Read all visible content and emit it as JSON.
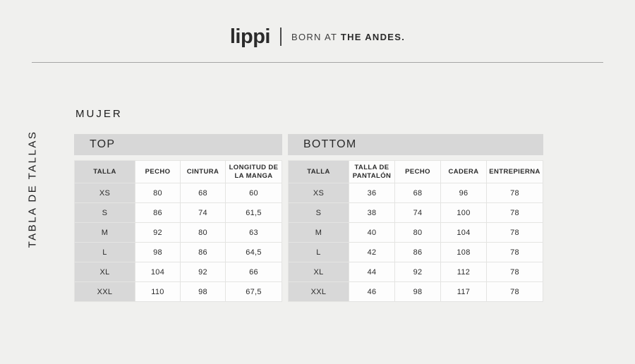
{
  "header": {
    "brand": "lippi",
    "tagline_regular": "BORN AT ",
    "tagline_bold": "THE ANDES."
  },
  "sidebar": {
    "vertical_label": "TABLA DE TALLAS"
  },
  "section": {
    "title": "MUJER"
  },
  "tables": [
    {
      "title": "TOP",
      "columns": [
        "TALLA",
        "PECHO",
        "CINTURA",
        "LONGITUD DE LA MANGA"
      ],
      "rows": [
        [
          "XS",
          "80",
          "68",
          "60"
        ],
        [
          "S",
          "86",
          "74",
          "61,5"
        ],
        [
          "M",
          "92",
          "80",
          "63"
        ],
        [
          "L",
          "98",
          "86",
          "64,5"
        ],
        [
          "XL",
          "104",
          "92",
          "66"
        ],
        [
          "XXL",
          "110",
          "98",
          "67,5"
        ]
      ]
    },
    {
      "title": "BOTTOM",
      "columns": [
        "TALLA",
        "TALLA DE PANTALÓN",
        "PECHO",
        "CADERA",
        "ENTREPIERNA"
      ],
      "rows": [
        [
          "XS",
          "36",
          "68",
          "96",
          "78"
        ],
        [
          "S",
          "38",
          "74",
          "100",
          "78"
        ],
        [
          "M",
          "40",
          "80",
          "104",
          "78"
        ],
        [
          "L",
          "42",
          "86",
          "108",
          "78"
        ],
        [
          "XL",
          "44",
          "92",
          "112",
          "78"
        ],
        [
          "XXL",
          "46",
          "98",
          "117",
          "78"
        ]
      ]
    }
  ],
  "colors": {
    "page_background": "#f0f0ee",
    "banner_gray": "#d7d7d7",
    "label_cell_gray": "#d8d8d8",
    "cell_white": "#fdfdfd",
    "cell_border": "#e4e4e2",
    "text_dark": "#2b2b2b",
    "divider": "#a5a5a5"
  }
}
